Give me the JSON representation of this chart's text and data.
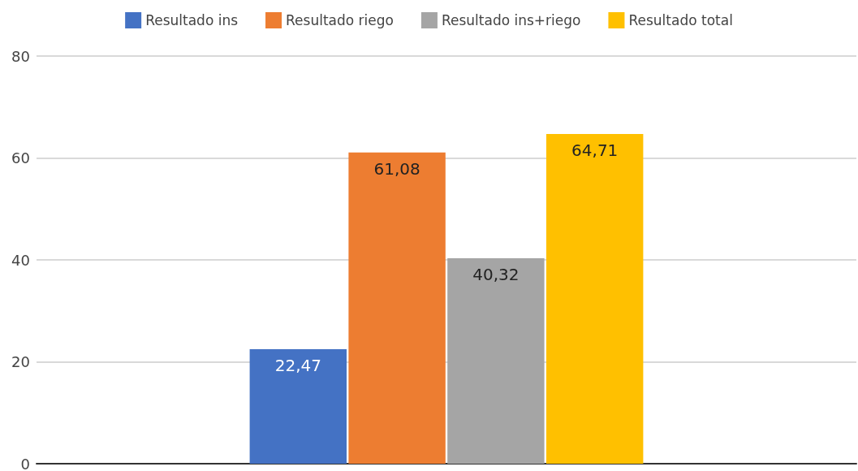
{
  "chart_data": {
    "type": "bar",
    "categories": [
      null
    ],
    "series": [
      {
        "name": "Resultado ins",
        "color": "#4472c4",
        "values": [
          22.47
        ],
        "value_labels": [
          "22,47"
        ]
      },
      {
        "name": "Resultado riego",
        "color": "#ed7d31",
        "values": [
          61.08
        ],
        "value_labels": [
          "61,08"
        ]
      },
      {
        "name": "Resultado ins+riego",
        "color": "#a5a5a5",
        "values": [
          40.32
        ],
        "value_labels": [
          "40,32"
        ]
      },
      {
        "name": "Resultado total",
        "color": "#ffc000",
        "values": [
          64.71
        ],
        "value_labels": [
          "64,71"
        ]
      }
    ],
    "ylim": [
      0,
      80
    ],
    "yticks": [
      0,
      20,
      40,
      60,
      80
    ],
    "grid": "y",
    "legend": "top"
  }
}
